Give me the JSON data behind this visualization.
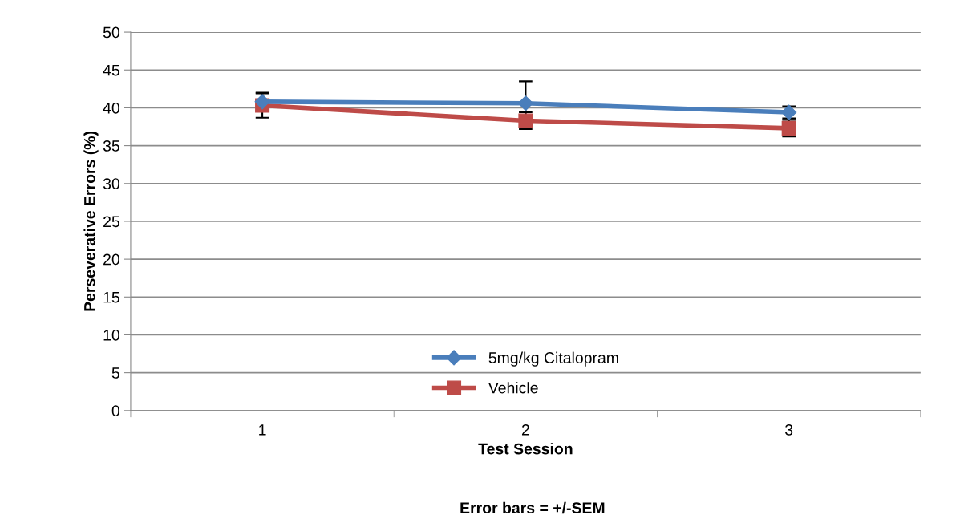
{
  "chart_data": {
    "type": "line",
    "xlabel": "Test Session",
    "ylabel": "Perseverative Errors (%)",
    "x": [
      1,
      2,
      3
    ],
    "xlim": [
      0.5,
      3.5
    ],
    "xticks": [
      1,
      2,
      3
    ],
    "series": [
      {
        "name": "5mg/kg Citalopram",
        "color": "#4a7ebb",
        "marker": "diamond",
        "values": [
          40.8,
          40.6,
          39.4
        ],
        "errors": [
          1.2,
          2.9,
          0.8
        ]
      },
      {
        "name": "Vehicle",
        "color": "#be4b48",
        "marker": "square",
        "values": [
          40.3,
          38.3,
          37.3
        ],
        "errors": [
          1.6,
          1.1,
          1.1
        ]
      }
    ],
    "ylim": [
      0,
      50
    ],
    "yticks": [
      0,
      5,
      10,
      15,
      20,
      25,
      30,
      35,
      40,
      45,
      50
    ],
    "grid": "y",
    "legend": "bottom",
    "line_style": "solid",
    "annotations": [
      "Error bars = +/-SEM"
    ]
  }
}
